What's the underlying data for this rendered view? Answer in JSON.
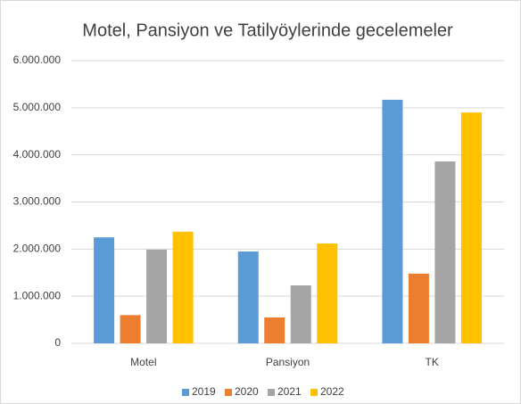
{
  "chart_data": {
    "type": "bar",
    "title": "Motel, Pansiyon ve Tatilyöylerinde gecelemeler",
    "categories": [
      "Motel",
      "Pansiyon",
      "TK"
    ],
    "series": [
      {
        "name": "2019",
        "color": "#5b9bd5",
        "values": [
          2250000,
          1950000,
          5170000
        ]
      },
      {
        "name": "2020",
        "color": "#ed7d31",
        "values": [
          600000,
          550000,
          1480000
        ]
      },
      {
        "name": "2021",
        "color": "#a5a5a5",
        "values": [
          1990000,
          1230000,
          3860000
        ]
      },
      {
        "name": "2022",
        "color": "#ffc000",
        "values": [
          2370000,
          2120000,
          4900000
        ]
      }
    ],
    "ylim": [
      0,
      6000000
    ],
    "yticks": [
      0,
      {
        "value": 1000000,
        "label": "1.000.000"
      },
      {
        "value": 2000000,
        "label": "2.000.000"
      },
      {
        "value": 3000000,
        "label": "3.000.000"
      },
      {
        "value": 4000000,
        "label": "4.000.000"
      },
      {
        "value": 5000000,
        "label": "5.000.000"
      },
      {
        "value": 6000000,
        "label": "6.000.000"
      }
    ],
    "grid": true,
    "legend": "bottom"
  }
}
